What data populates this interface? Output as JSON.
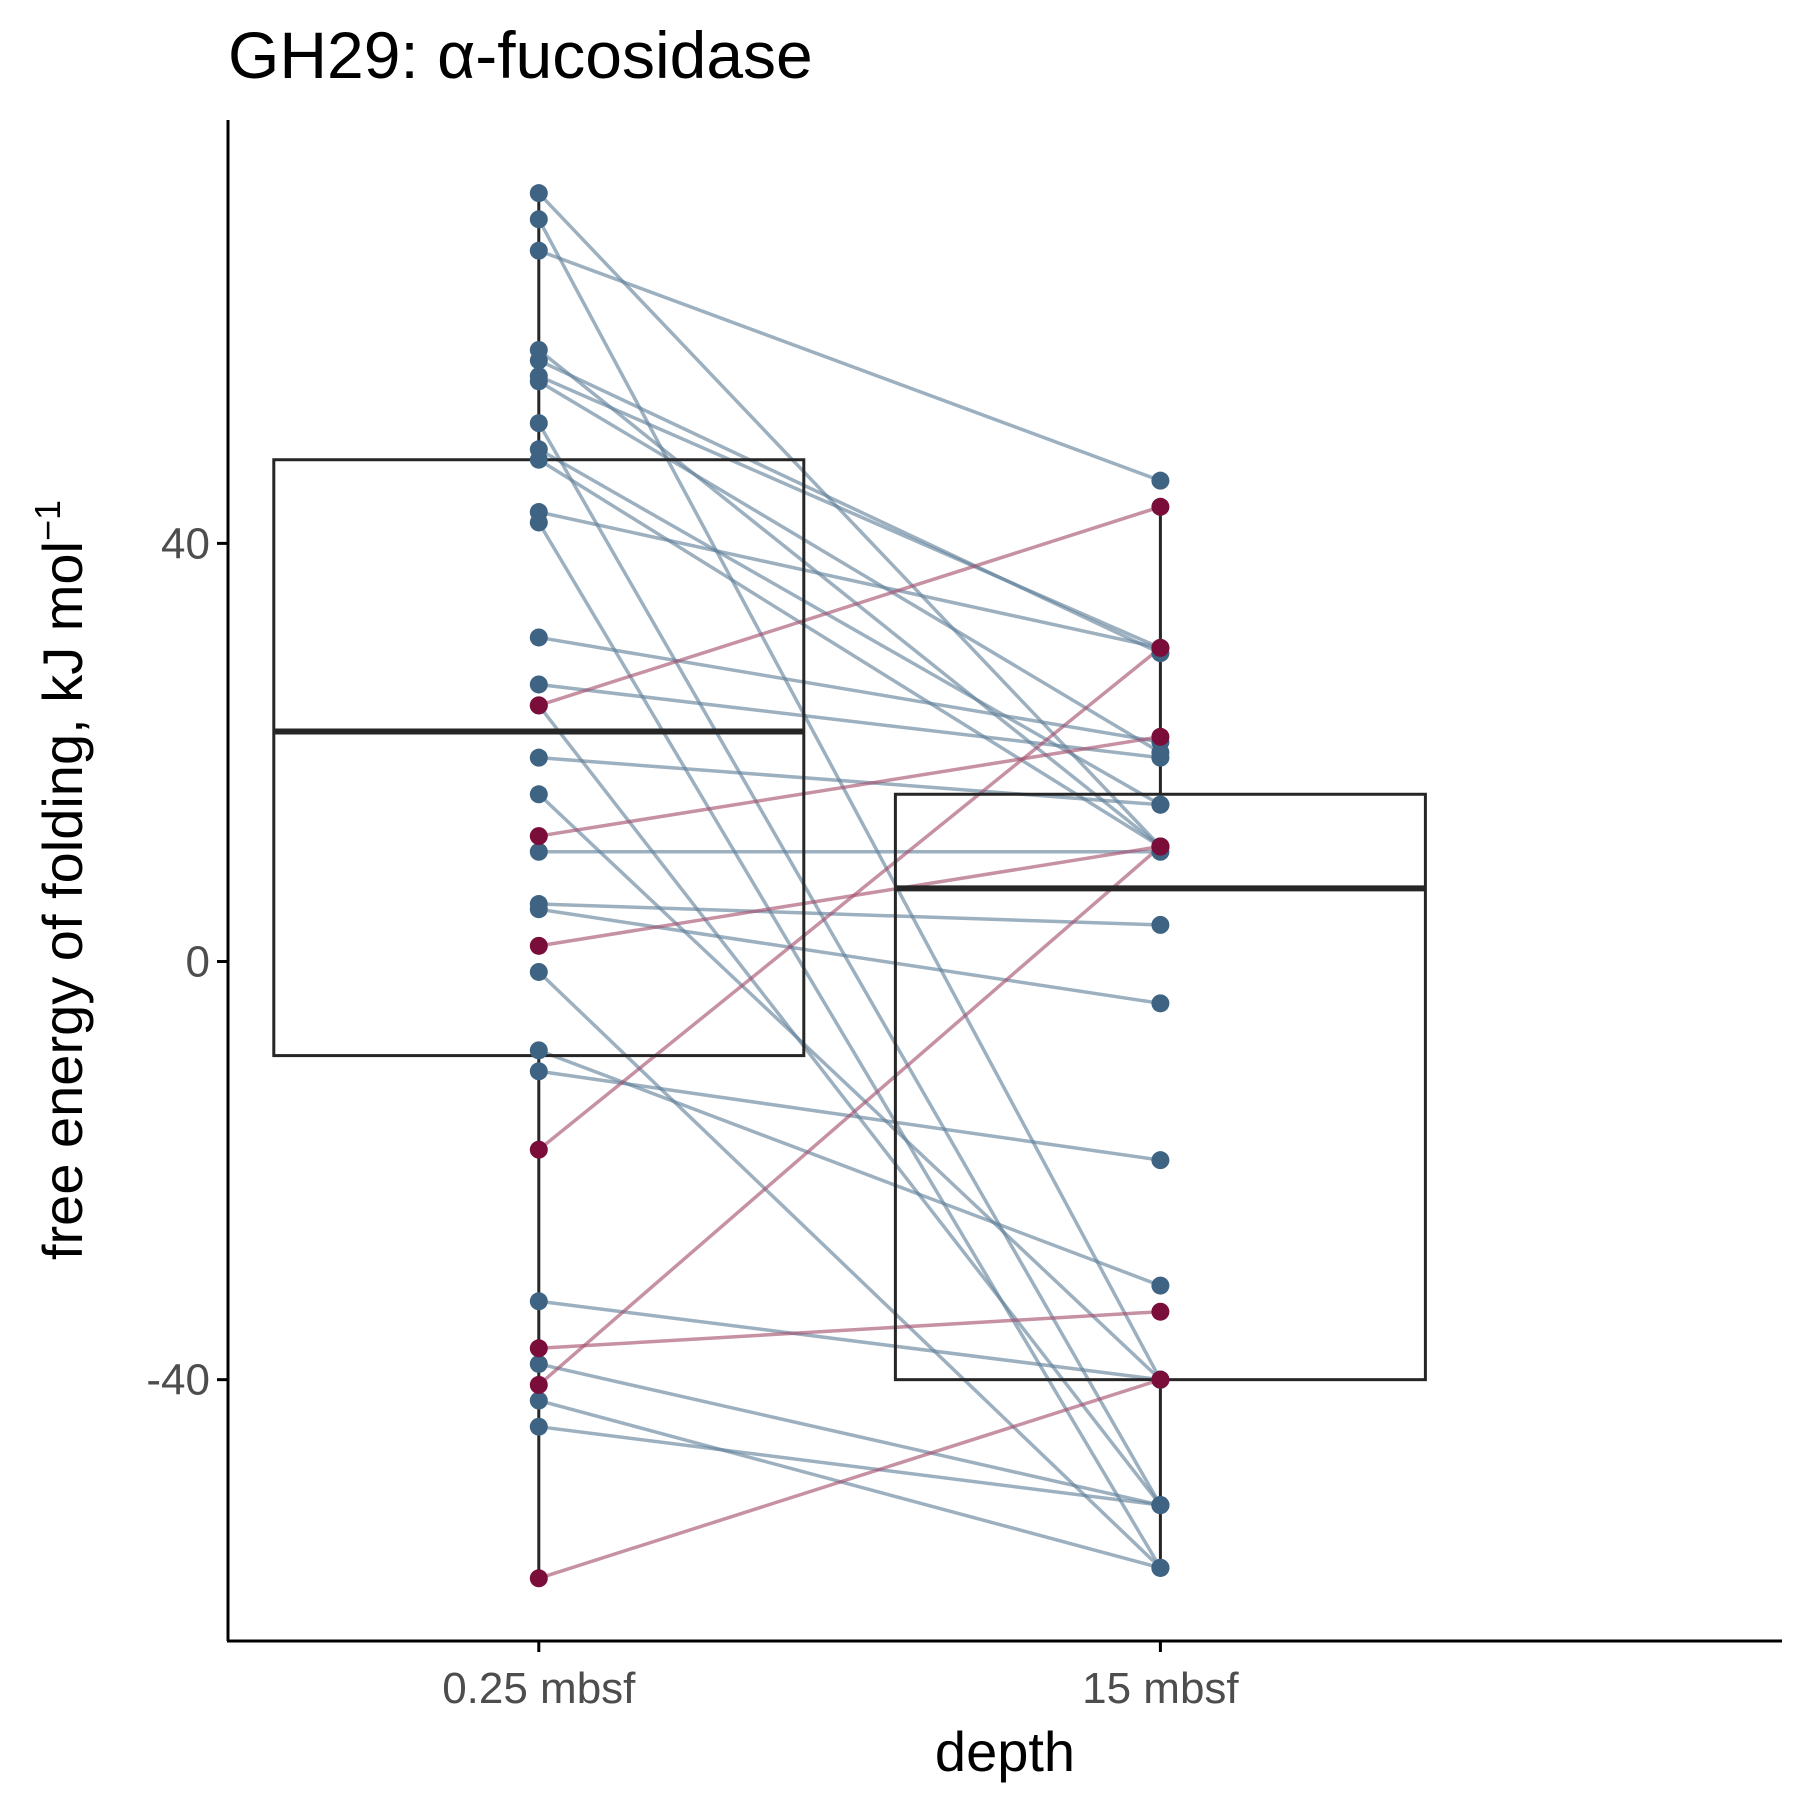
{
  "chart_data": {
    "type": "box",
    "title": "GH29: α-fucosidase",
    "xlabel": "depth",
    "ylabel": "free energy of folding, kJ mol",
    "ylabel_superscript": "−1",
    "categories": [
      "0.25 mbsf",
      "15 mbsf"
    ],
    "yticks": [
      {
        "value": -40,
        "label": "-40"
      },
      {
        "value": 0,
        "label": "0"
      },
      {
        "value": 40,
        "label": "40"
      }
    ],
    "ylim": [
      -65,
      80.5
    ],
    "grid": false,
    "legend": "none",
    "colors": {
      "line_blue": "#5f7f99",
      "point_blue": "#3f6382",
      "line_red": "#a54d6c",
      "point_red": "#7a0d3a",
      "box": "#262626"
    },
    "boxes": [
      {
        "category": "0.25 mbsf",
        "q1": -9,
        "median": 22,
        "q3": 48,
        "whisker_low": -59,
        "whisker_high": 73.5
      },
      {
        "category": "15 mbsf",
        "q1": -40,
        "median": 7,
        "q3": 16,
        "whisker_low": -58,
        "whisker_high": 43.5
      }
    ],
    "pairs": [
      {
        "y1": 73.5,
        "y2": 11,
        "group": "blue"
      },
      {
        "y1": 71,
        "y2": -40,
        "group": "blue"
      },
      {
        "y1": 68,
        "y2": 46,
        "group": "blue"
      },
      {
        "y1": 58.5,
        "y2": 11,
        "group": "blue"
      },
      {
        "y1": 57.5,
        "y2": 29.5,
        "group": "blue"
      },
      {
        "y1": 56,
        "y2": 30,
        "group": "blue"
      },
      {
        "y1": 55.5,
        "y2": 20,
        "group": "blue"
      },
      {
        "y1": 51.5,
        "y2": -52,
        "group": "blue"
      },
      {
        "y1": 49,
        "y2": 15,
        "group": "blue"
      },
      {
        "y1": 48,
        "y2": 11,
        "group": "blue"
      },
      {
        "y1": 43,
        "y2": 30,
        "group": "blue"
      },
      {
        "y1": 42,
        "y2": -58,
        "group": "blue"
      },
      {
        "y1": 31,
        "y2": 21,
        "group": "blue"
      },
      {
        "y1": 26.5,
        "y2": 19.5,
        "group": "blue"
      },
      {
        "y1": 24.5,
        "y2": -52,
        "group": "blue"
      },
      {
        "y1": 19.5,
        "y2": 15,
        "group": "blue"
      },
      {
        "y1": 16,
        "y2": -40,
        "group": "blue"
      },
      {
        "y1": 10.5,
        "y2": 10.5,
        "group": "blue"
      },
      {
        "y1": 5.5,
        "y2": 3.5,
        "group": "blue"
      },
      {
        "y1": 5,
        "y2": -4,
        "group": "blue"
      },
      {
        "y1": -1,
        "y2": -58,
        "group": "blue"
      },
      {
        "y1": -8.5,
        "y2": -31,
        "group": "blue"
      },
      {
        "y1": -10.5,
        "y2": -19,
        "group": "blue"
      },
      {
        "y1": -32.5,
        "y2": -40,
        "group": "blue"
      },
      {
        "y1": -38.5,
        "y2": -52,
        "group": "blue"
      },
      {
        "y1": -42,
        "y2": -58,
        "group": "blue"
      },
      {
        "y1": -44.5,
        "y2": -52,
        "group": "blue"
      },
      {
        "y1": 24.5,
        "y2": 43.5,
        "group": "red"
      },
      {
        "y1": 12,
        "y2": 21.5,
        "group": "red"
      },
      {
        "y1": 1.5,
        "y2": 11,
        "group": "red"
      },
      {
        "y1": -18,
        "y2": 30,
        "group": "red"
      },
      {
        "y1": -37,
        "y2": -33.5,
        "group": "red"
      },
      {
        "y1": -40.5,
        "y2": 11,
        "group": "red"
      },
      {
        "y1": -59,
        "y2": -40,
        "group": "red"
      }
    ]
  }
}
